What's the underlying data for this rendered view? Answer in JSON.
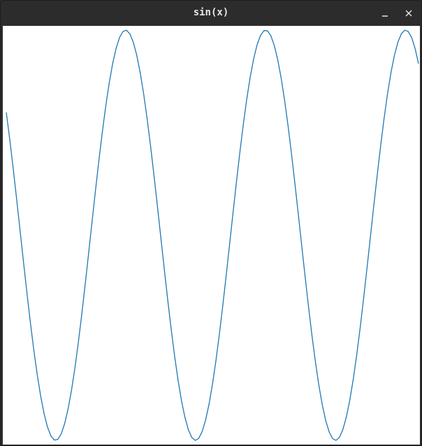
{
  "window": {
    "title": "sin(x)",
    "controls": {
      "minimize_icon": "minimize-icon",
      "close_icon": "close-icon"
    }
  },
  "colors": {
    "titlebar": "#2c2c2c",
    "title_text": "#e6e6e6",
    "plot_background": "#ffffff",
    "line": "#1f77b4"
  },
  "chart_data": {
    "type": "line",
    "function": "sin(x)",
    "x_start": 2.5,
    "x_end": 21.0,
    "ylim": [
      -1,
      1
    ],
    "samples": 120,
    "axes_visible": false,
    "grid": false
  }
}
